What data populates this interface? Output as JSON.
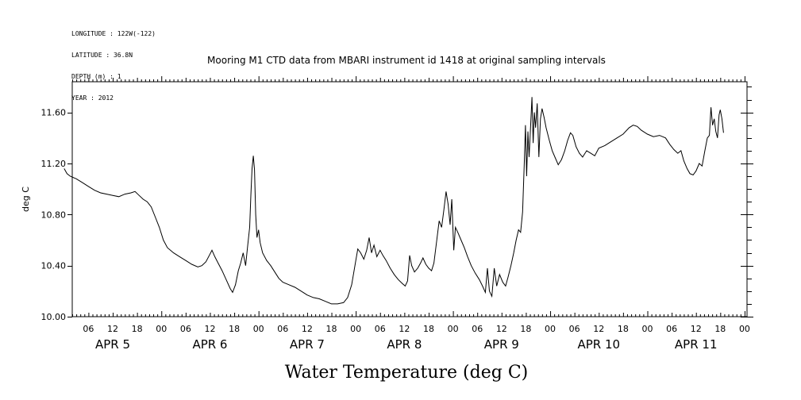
{
  "header": {
    "longitude": "LONGITUDE : 122W(-122)",
    "latitude": "LATITUDE : 36.8N",
    "depth": "DEPTH (m) : 1",
    "year": "YEAR : 2012"
  },
  "chart_data": {
    "type": "line",
    "title": "Mooring M1 CTD data from MBARI instrument id 1418 at original sampling intervals",
    "xlabel": "Water Temperature (deg C)",
    "ylabel": "deg C",
    "ylim": [
      10.0,
      11.84
    ],
    "xlim_hours": [
      0,
      168
    ],
    "y_ticks": [
      10.0,
      10.4,
      10.8,
      11.2,
      11.6
    ],
    "y_tick_labels": [
      "10.00",
      "10.40",
      "10.80",
      "11.20",
      "11.60"
    ],
    "x_hour_ticks": [
      {
        "t": 6,
        "label": "06"
      },
      {
        "t": 12,
        "label": "12"
      },
      {
        "t": 18,
        "label": "18"
      },
      {
        "t": 24,
        "label": "00"
      },
      {
        "t": 30,
        "label": "06"
      },
      {
        "t": 36,
        "label": "12"
      },
      {
        "t": 42,
        "label": "18"
      },
      {
        "t": 48,
        "label": "00"
      },
      {
        "t": 54,
        "label": "06"
      },
      {
        "t": 60,
        "label": "12"
      },
      {
        "t": 66,
        "label": "18"
      },
      {
        "t": 72,
        "label": "00"
      },
      {
        "t": 78,
        "label": "06"
      },
      {
        "t": 84,
        "label": "12"
      },
      {
        "t": 90,
        "label": "18"
      },
      {
        "t": 96,
        "label": "00"
      },
      {
        "t": 102,
        "label": "06"
      },
      {
        "t": 108,
        "label": "12"
      },
      {
        "t": 114,
        "label": "18"
      },
      {
        "t": 120,
        "label": "00"
      },
      {
        "t": 126,
        "label": "06"
      },
      {
        "t": 132,
        "label": "12"
      },
      {
        "t": 138,
        "label": "18"
      },
      {
        "t": 144,
        "label": "00"
      },
      {
        "t": 150,
        "label": "06"
      },
      {
        "t": 156,
        "label": "12"
      },
      {
        "t": 162,
        "label": "18"
      },
      {
        "t": 168,
        "label": "00"
      }
    ],
    "x_day_labels": [
      {
        "t": 12,
        "label": "APR  5"
      },
      {
        "t": 36,
        "label": "APR  6"
      },
      {
        "t": 60,
        "label": "APR  7"
      },
      {
        "t": 84,
        "label": "APR  8"
      },
      {
        "t": 108,
        "label": "APR  9"
      },
      {
        "t": 132,
        "label": "APR 10"
      },
      {
        "t": 156,
        "label": "APR 11"
      }
    ],
    "series": [
      {
        "points": [
          [
            0,
            11.16
          ],
          [
            0.7,
            11.12
          ],
          [
            1.5,
            11.1
          ],
          [
            3,
            11.08
          ],
          [
            4.5,
            11.05
          ],
          [
            6,
            11.02
          ],
          [
            7.5,
            10.99
          ],
          [
            9,
            10.97
          ],
          [
            10.5,
            10.96
          ],
          [
            12,
            10.95
          ],
          [
            13.5,
            10.94
          ],
          [
            15,
            10.96
          ],
          [
            16.5,
            10.97
          ],
          [
            17.5,
            10.98
          ],
          [
            18.5,
            10.95
          ],
          [
            19.5,
            10.92
          ],
          [
            20.5,
            10.9
          ],
          [
            21.5,
            10.86
          ],
          [
            22.5,
            10.78
          ],
          [
            23.5,
            10.7
          ],
          [
            24.5,
            10.6
          ],
          [
            25.5,
            10.54
          ],
          [
            27,
            10.5
          ],
          [
            28.5,
            10.47
          ],
          [
            30,
            10.44
          ],
          [
            31.5,
            10.41
          ],
          [
            33,
            10.39
          ],
          [
            34,
            10.4
          ],
          [
            35,
            10.43
          ],
          [
            36,
            10.49
          ],
          [
            36.5,
            10.52
          ],
          [
            37.2,
            10.47
          ],
          [
            38,
            10.42
          ],
          [
            39,
            10.36
          ],
          [
            40,
            10.29
          ],
          [
            41,
            10.22
          ],
          [
            41.6,
            10.19
          ],
          [
            42.3,
            10.25
          ],
          [
            43,
            10.36
          ],
          [
            43.6,
            10.42
          ],
          [
            44.2,
            10.5
          ],
          [
            44.8,
            10.4
          ],
          [
            45.3,
            10.55
          ],
          [
            45.8,
            10.7
          ],
          [
            46.1,
            10.95
          ],
          [
            46.4,
            11.16
          ],
          [
            46.7,
            11.26
          ],
          [
            47.0,
            11.15
          ],
          [
            47.3,
            10.8
          ],
          [
            47.6,
            10.62
          ],
          [
            48.0,
            10.68
          ],
          [
            48.4,
            10.58
          ],
          [
            49,
            10.5
          ],
          [
            50,
            10.44
          ],
          [
            51,
            10.4
          ],
          [
            52,
            10.35
          ],
          [
            53,
            10.3
          ],
          [
            54,
            10.27
          ],
          [
            55.5,
            10.25
          ],
          [
            57,
            10.23
          ],
          [
            58.5,
            10.2
          ],
          [
            60,
            10.17
          ],
          [
            61.5,
            10.15
          ],
          [
            63,
            10.14
          ],
          [
            64.5,
            10.12
          ],
          [
            66,
            10.1
          ],
          [
            67.5,
            10.1
          ],
          [
            69,
            10.11
          ],
          [
            70,
            10.15
          ],
          [
            71,
            10.25
          ],
          [
            71.8,
            10.4
          ],
          [
            72.5,
            10.53
          ],
          [
            73.2,
            10.5
          ],
          [
            74,
            10.45
          ],
          [
            74.7,
            10.52
          ],
          [
            75.3,
            10.62
          ],
          [
            75.9,
            10.5
          ],
          [
            76.5,
            10.56
          ],
          [
            77.2,
            10.47
          ],
          [
            78,
            10.52
          ],
          [
            78.7,
            10.48
          ],
          [
            79.5,
            10.44
          ],
          [
            80.5,
            10.38
          ],
          [
            81.5,
            10.33
          ],
          [
            82.5,
            10.29
          ],
          [
            83.5,
            10.26
          ],
          [
            84.2,
            10.24
          ],
          [
            84.8,
            10.28
          ],
          [
            85.3,
            10.48
          ],
          [
            85.8,
            10.4
          ],
          [
            86.5,
            10.35
          ],
          [
            87.3,
            10.38
          ],
          [
            88,
            10.42
          ],
          [
            88.6,
            10.46
          ],
          [
            89.3,
            10.41
          ],
          [
            90,
            10.38
          ],
          [
            90.7,
            10.36
          ],
          [
            91.3,
            10.42
          ],
          [
            92,
            10.6
          ],
          [
            92.6,
            10.75
          ],
          [
            93.2,
            10.7
          ],
          [
            93.8,
            10.85
          ],
          [
            94.3,
            10.98
          ],
          [
            94.8,
            10.88
          ],
          [
            95.3,
            10.72
          ],
          [
            95.7,
            10.92
          ],
          [
            96.2,
            10.52
          ],
          [
            96.6,
            10.7
          ],
          [
            97.2,
            10.66
          ],
          [
            98,
            10.6
          ],
          [
            98.8,
            10.54
          ],
          [
            99.6,
            10.47
          ],
          [
            100.5,
            10.4
          ],
          [
            101.5,
            10.34
          ],
          [
            102.5,
            10.29
          ],
          [
            103.3,
            10.24
          ],
          [
            104,
            10.19
          ],
          [
            104.5,
            10.38
          ],
          [
            105,
            10.2
          ],
          [
            105.6,
            10.16
          ],
          [
            106.2,
            10.38
          ],
          [
            106.8,
            10.24
          ],
          [
            107.5,
            10.33
          ],
          [
            108.3,
            10.27
          ],
          [
            109,
            10.24
          ],
          [
            109.6,
            10.31
          ],
          [
            110.3,
            10.4
          ],
          [
            111,
            10.5
          ],
          [
            111.6,
            10.6
          ],
          [
            112.2,
            10.68
          ],
          [
            112.7,
            10.66
          ],
          [
            113.2,
            10.82
          ],
          [
            113.6,
            11.2
          ],
          [
            113.9,
            11.5
          ],
          [
            114.2,
            11.1
          ],
          [
            114.5,
            11.45
          ],
          [
            114.8,
            11.25
          ],
          [
            115.2,
            11.52
          ],
          [
            115.5,
            11.72
          ],
          [
            115.8,
            11.36
          ],
          [
            116.1,
            11.6
          ],
          [
            116.4,
            11.48
          ],
          [
            116.8,
            11.67
          ],
          [
            117.2,
            11.25
          ],
          [
            117.6,
            11.55
          ],
          [
            118.0,
            11.63
          ],
          [
            118.5,
            11.56
          ],
          [
            119,
            11.48
          ],
          [
            119.8,
            11.38
          ],
          [
            120.5,
            11.3
          ],
          [
            121.3,
            11.24
          ],
          [
            122,
            11.19
          ],
          [
            122.8,
            11.23
          ],
          [
            123.6,
            11.3
          ],
          [
            124.3,
            11.38
          ],
          [
            125,
            11.44
          ],
          [
            125.6,
            11.42
          ],
          [
            126.4,
            11.33
          ],
          [
            127.2,
            11.28
          ],
          [
            128,
            11.25
          ],
          [
            129,
            11.3
          ],
          [
            130,
            11.28
          ],
          [
            131,
            11.26
          ],
          [
            132,
            11.32
          ],
          [
            133.5,
            11.34
          ],
          [
            135,
            11.37
          ],
          [
            136.5,
            11.4
          ],
          [
            138,
            11.43
          ],
          [
            139.5,
            11.48
          ],
          [
            140.5,
            11.5
          ],
          [
            141.5,
            11.49
          ],
          [
            142.5,
            11.46
          ],
          [
            144,
            11.43
          ],
          [
            145.5,
            11.41
          ],
          [
            147,
            11.42
          ],
          [
            148.5,
            11.4
          ],
          [
            149.5,
            11.35
          ],
          [
            150.5,
            11.31
          ],
          [
            151.5,
            11.28
          ],
          [
            152.3,
            11.3
          ],
          [
            153,
            11.22
          ],
          [
            153.8,
            11.16
          ],
          [
            154.5,
            11.12
          ],
          [
            155.3,
            11.11
          ],
          [
            156,
            11.14
          ],
          [
            156.8,
            11.2
          ],
          [
            157.5,
            11.18
          ],
          [
            158.2,
            11.3
          ],
          [
            158.8,
            11.4
          ],
          [
            159.3,
            11.42
          ],
          [
            159.7,
            11.64
          ],
          [
            160.1,
            11.5
          ],
          [
            160.5,
            11.55
          ],
          [
            160.9,
            11.45
          ],
          [
            161.3,
            11.4
          ],
          [
            161.7,
            11.58
          ],
          [
            162.0,
            11.62
          ],
          [
            162.4,
            11.55
          ],
          [
            162.8,
            11.44
          ]
        ]
      }
    ]
  }
}
